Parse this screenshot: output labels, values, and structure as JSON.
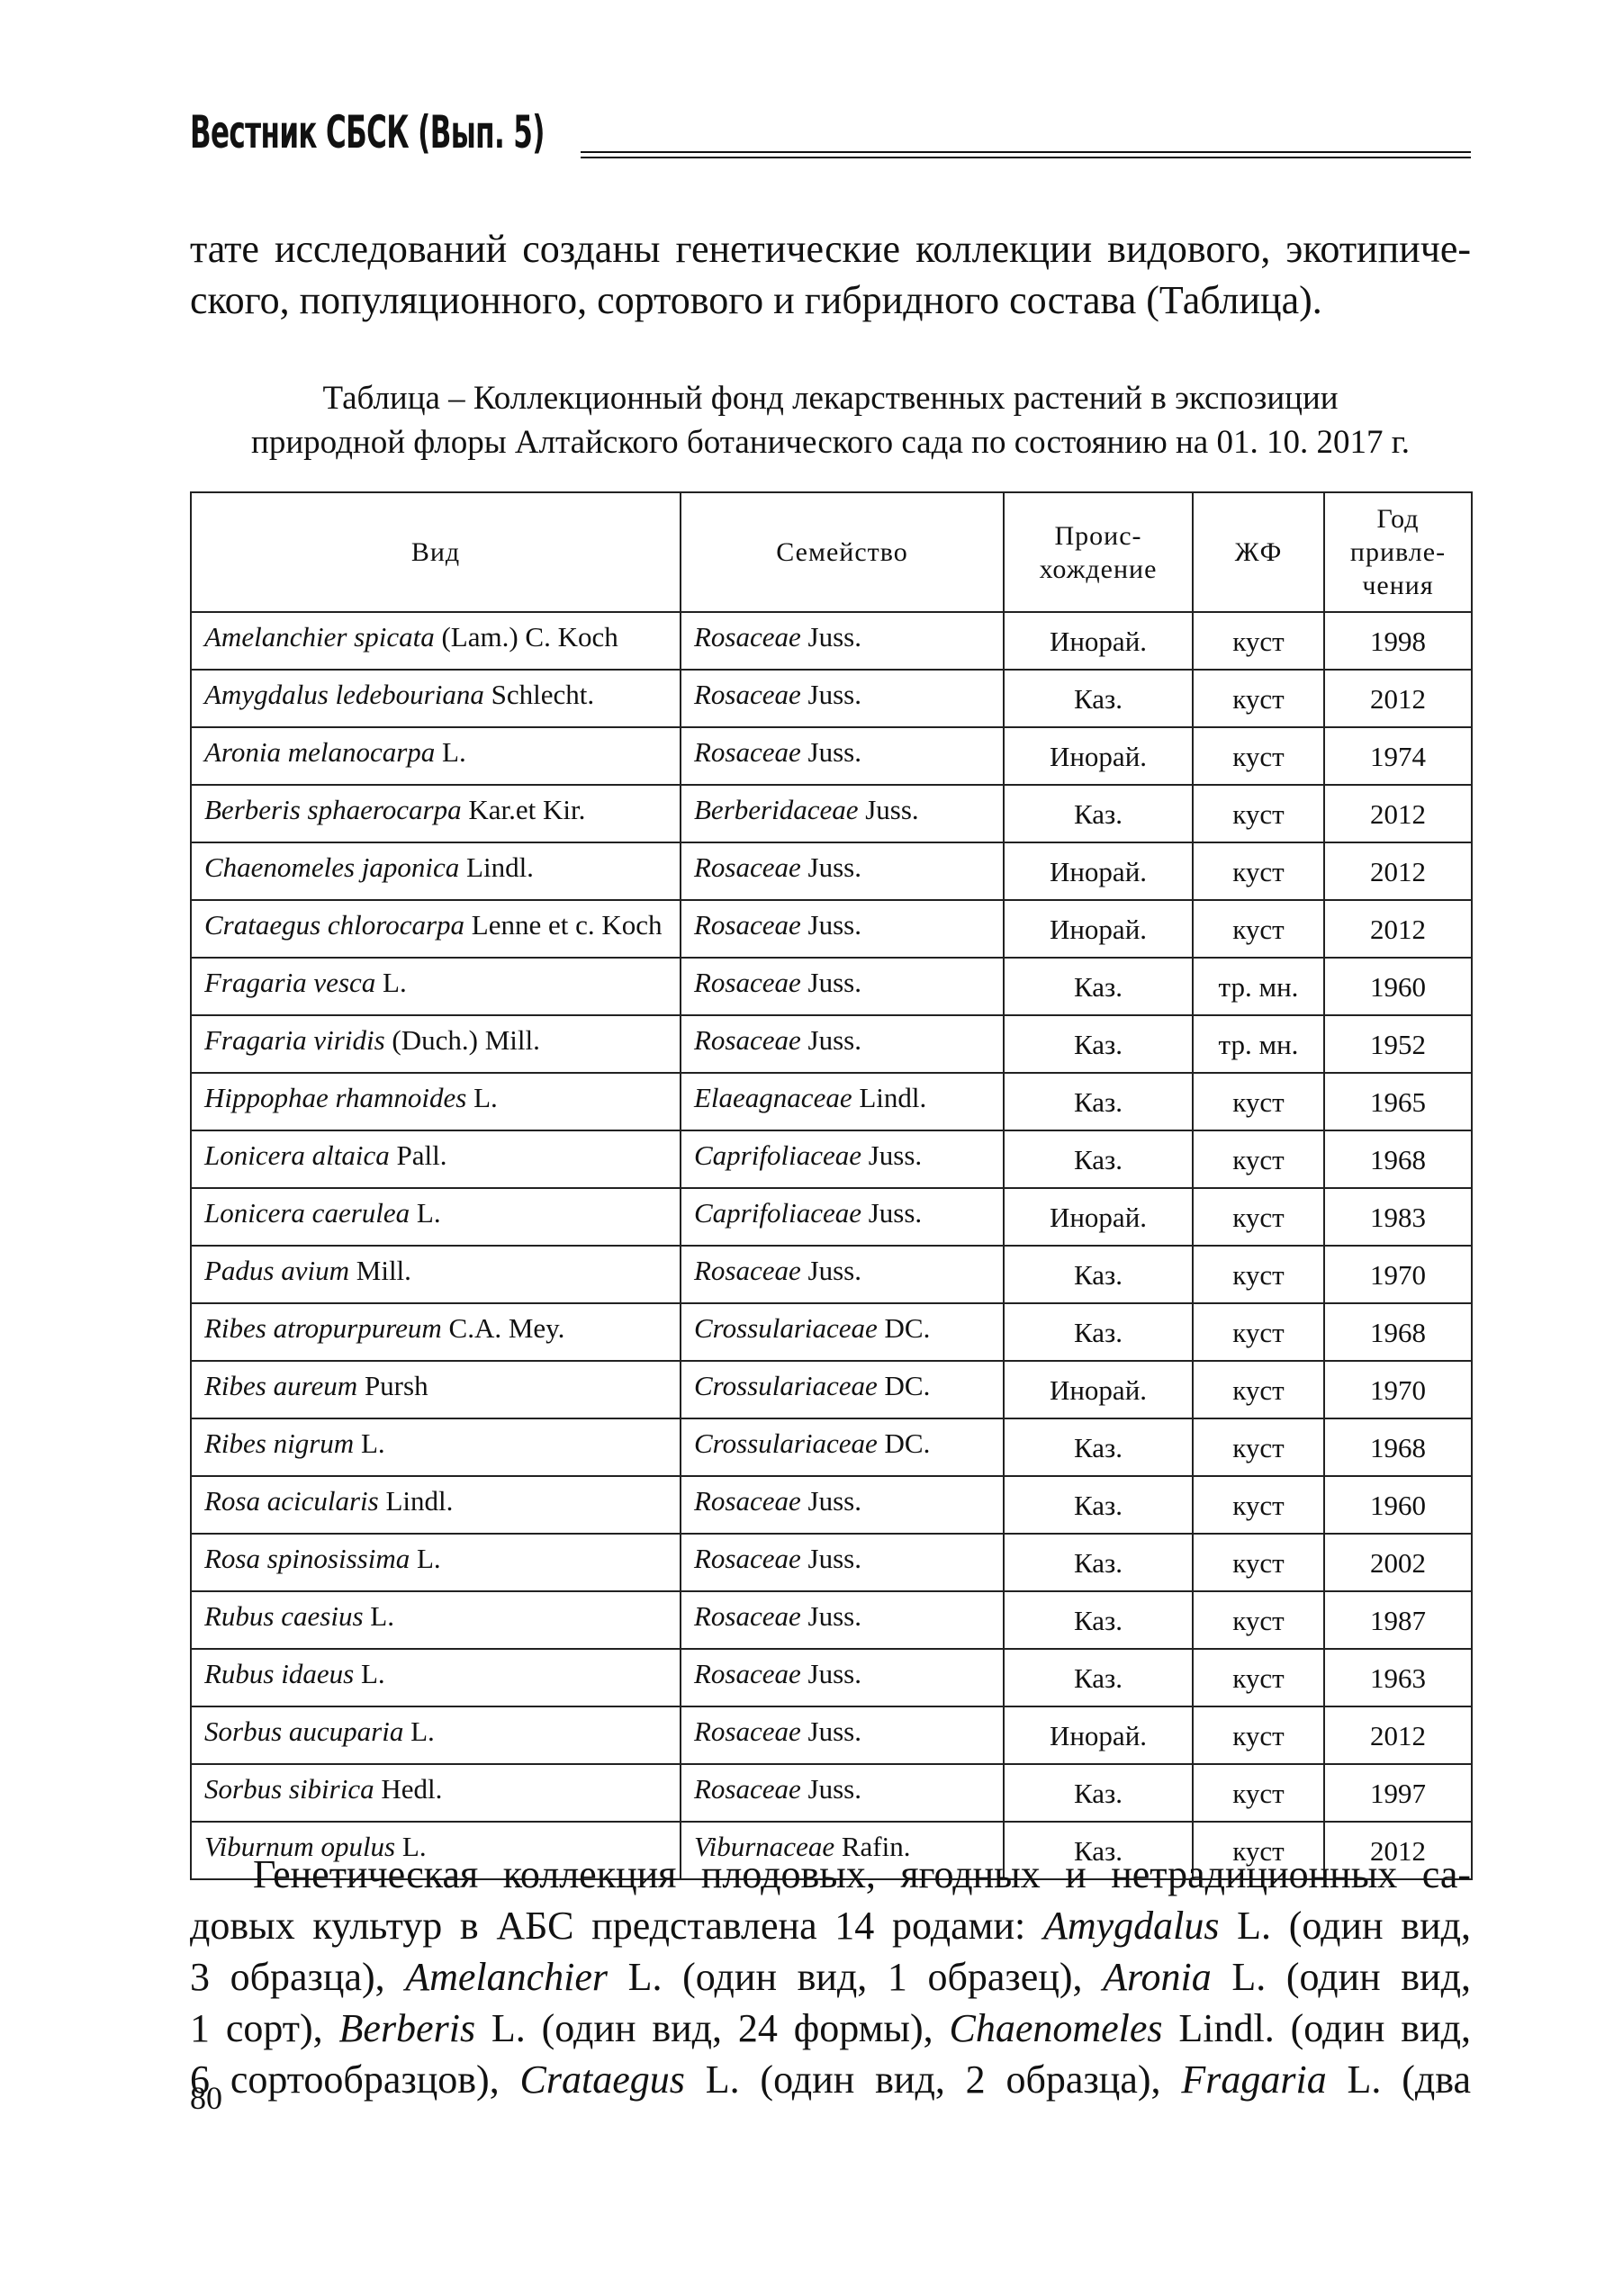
{
  "header": {
    "title": "Вестник СБСК (Вып. 5)"
  },
  "intro": {
    "lines": [
      "тате исследований созданы генетические коллекции видового, экотипиче-",
      "ского, популяционного, сортового и гибридного состава (Таблица)."
    ]
  },
  "caption": {
    "lines": [
      "Таблица –  Коллекционный фонд лекарственных растений в экспозиции",
      "природной флоры Алтайского ботанического сада по состоянию на 01. 10. 2017 г."
    ]
  },
  "table": {
    "columns": [
      [
        "Вид"
      ],
      [
        "Семейство"
      ],
      [
        "Проис-",
        "хождение"
      ],
      [
        "ЖФ"
      ],
      [
        "Год",
        "привле-",
        "чения"
      ]
    ],
    "rows": [
      {
        "species": {
          "name": "Amelanchier spicata",
          "author": "(Lam.) C. Koch"
        },
        "family": {
          "name": "Rosaceae",
          "author": "Juss."
        },
        "origin": "Инорай.",
        "form": "куст",
        "year": 1998
      },
      {
        "species": {
          "name": "Amygdalus ledebouriana",
          "author": "Schlecht."
        },
        "family": {
          "name": "Rosaceae",
          "author": "Juss."
        },
        "origin": "Каз.",
        "form": "куст",
        "year": 2012
      },
      {
        "species": {
          "name": "Aronia melanocarpa",
          "author": "L."
        },
        "family": {
          "name": "Rosaceae",
          "author": "Juss."
        },
        "origin": "Инорай.",
        "form": "куст",
        "year": 1974
      },
      {
        "species": {
          "name": "Berberis sphaerocarpa",
          "author": "Kar.et Kir."
        },
        "family": {
          "name": "Berberidaceae",
          "author": "Juss."
        },
        "origin": "Каз.",
        "form": "куст",
        "year": 2012
      },
      {
        "species": {
          "name": "Chaenomeles japonica",
          "author": "Lindl."
        },
        "family": {
          "name": "Rosaceae",
          "author": "Juss."
        },
        "origin": "Инорай.",
        "form": "куст",
        "year": 2012
      },
      {
        "species": {
          "name": "Crataegus chlorocarpa",
          "author": "Lenne et c. Koch"
        },
        "family": {
          "name": "Rosaceae",
          "author": "Juss."
        },
        "origin": "Инорай.",
        "form": "куст",
        "year": 2012
      },
      {
        "species": {
          "name": "Fragaria vesca",
          "author": "L."
        },
        "family": {
          "name": "Rosaceae",
          "author": "Juss."
        },
        "origin": "Каз.",
        "form": "тр. мн.",
        "year": 1960
      },
      {
        "species": {
          "name": "Fragaria viridis",
          "author": "(Duch.) Mill."
        },
        "family": {
          "name": "Rosaceae",
          "author": "Juss."
        },
        "origin": "Каз.",
        "form": "тр. мн.",
        "year": 1952
      },
      {
        "species": {
          "name": "Hippophae rhamnoides",
          "author": "L."
        },
        "family": {
          "name": "Elaeagnaceae",
          "author": "Lindl."
        },
        "origin": "Каз.",
        "form": "куст",
        "year": 1965
      },
      {
        "species": {
          "name": "Lonicera altaica",
          "author": "Pall."
        },
        "family": {
          "name": "Caprifoliaceae",
          "author": "Juss."
        },
        "origin": "Каз.",
        "form": "куст",
        "year": 1968
      },
      {
        "species": {
          "name": "Lonicera caerulea",
          "author": "L."
        },
        "family": {
          "name": "Caprifoliaceae",
          "author": "Juss."
        },
        "origin": "Инорай.",
        "form": "куст",
        "year": 1983
      },
      {
        "species": {
          "name": "Padus avium",
          "author": "Mill."
        },
        "family": {
          "name": "Rosaceae",
          "author": "Juss."
        },
        "origin": "Каз.",
        "form": "куст",
        "year": 1970
      },
      {
        "species": {
          "name": "Ribes atropurpureum",
          "author": "C.A. Mey."
        },
        "family": {
          "name": "Crossulariaceae",
          "author": "DC."
        },
        "origin": "Каз.",
        "form": "куст",
        "year": 1968
      },
      {
        "species": {
          "name": "Ribes aureum",
          "author": "Pursh"
        },
        "family": {
          "name": "Crossulariaceae",
          "author": "DC."
        },
        "origin": "Инорай.",
        "form": "куст",
        "year": 1970
      },
      {
        "species": {
          "name": "Ribes nigrum",
          "author": "L."
        },
        "family": {
          "name": "Crossulariaceae",
          "author": "DC."
        },
        "origin": "Каз.",
        "form": "куст",
        "year": 1968
      },
      {
        "species": {
          "name": "Rosa acicularis",
          "author": "Lindl."
        },
        "family": {
          "name": "Rosaceae",
          "author": "Juss."
        },
        "origin": "Каз.",
        "form": "куст",
        "year": 1960
      },
      {
        "species": {
          "name": "Rosa spinosissima",
          "author": "L."
        },
        "family": {
          "name": "Rosaceae",
          "author": "Juss."
        },
        "origin": "Каз.",
        "form": "куст",
        "year": 2002
      },
      {
        "species": {
          "name": "Rubus caesius",
          "author": "L."
        },
        "family": {
          "name": "Rosaceae",
          "author": "Juss."
        },
        "origin": "Каз.",
        "form": "куст",
        "year": 1987
      },
      {
        "species": {
          "name": "Rubus idaeus",
          "author": "L."
        },
        "family": {
          "name": "Rosaceae",
          "author": "Juss."
        },
        "origin": "Каз.",
        "form": "куст",
        "year": 1963
      },
      {
        "species": {
          "name": "Sorbus aucuparia",
          "author": "L."
        },
        "family": {
          "name": "Rosaceae",
          "author": "Juss."
        },
        "origin": "Инорай.",
        "form": "куст",
        "year": 2012
      },
      {
        "species": {
          "name": "Sorbus sibirica",
          "author": "Hedl."
        },
        "family": {
          "name": "Rosaceae",
          "author": "Juss."
        },
        "origin": "Каз.",
        "form": "куст",
        "year": 1997
      },
      {
        "species": {
          "name": "Viburnum opulus",
          "author": "L."
        },
        "family": {
          "name": "Viburnaceae",
          "author": "Rafin."
        },
        "origin": "Каз.",
        "form": "куст",
        "year": 2012
      }
    ]
  },
  "body": {
    "lines": [
      [
        {
          "text": "Генетическая коллекция плодовых, ягодных и нетрадиционных са-",
          "italic": false
        }
      ],
      [
        {
          "text": "довых культур в АБС представлена 14 родами: ",
          "italic": false
        },
        {
          "text": "Amygdalus",
          "italic": true
        },
        {
          "text": " L. (один вид,",
          "italic": false
        }
      ],
      [
        {
          "text": "3 образца), ",
          "italic": false
        },
        {
          "text": "Amelanchier",
          "italic": true
        },
        {
          "text": " L. (один вид, 1 образец), ",
          "italic": false
        },
        {
          "text": "Aronia",
          "italic": true
        },
        {
          "text": " L. (один вид,",
          "italic": false
        }
      ],
      [
        {
          "text": "1 сорт), ",
          "italic": false
        },
        {
          "text": "Berberis",
          "italic": true
        },
        {
          "text": " L. (один вид, 24 формы), ",
          "italic": false
        },
        {
          "text": "Chaenomeles",
          "italic": true
        },
        {
          "text": " Lindl. (один вид,",
          "italic": false
        }
      ],
      [
        {
          "text": "6 сортообразцов), ",
          "italic": false
        },
        {
          "text": "Crataegus",
          "italic": true
        },
        {
          "text": " L. (один вид, 2 образца), ",
          "italic": false
        },
        {
          "text": "Fragaria",
          "italic": true
        },
        {
          "text": " L. (два",
          "italic": false
        }
      ]
    ]
  },
  "footer": {
    "page_number": 80
  }
}
